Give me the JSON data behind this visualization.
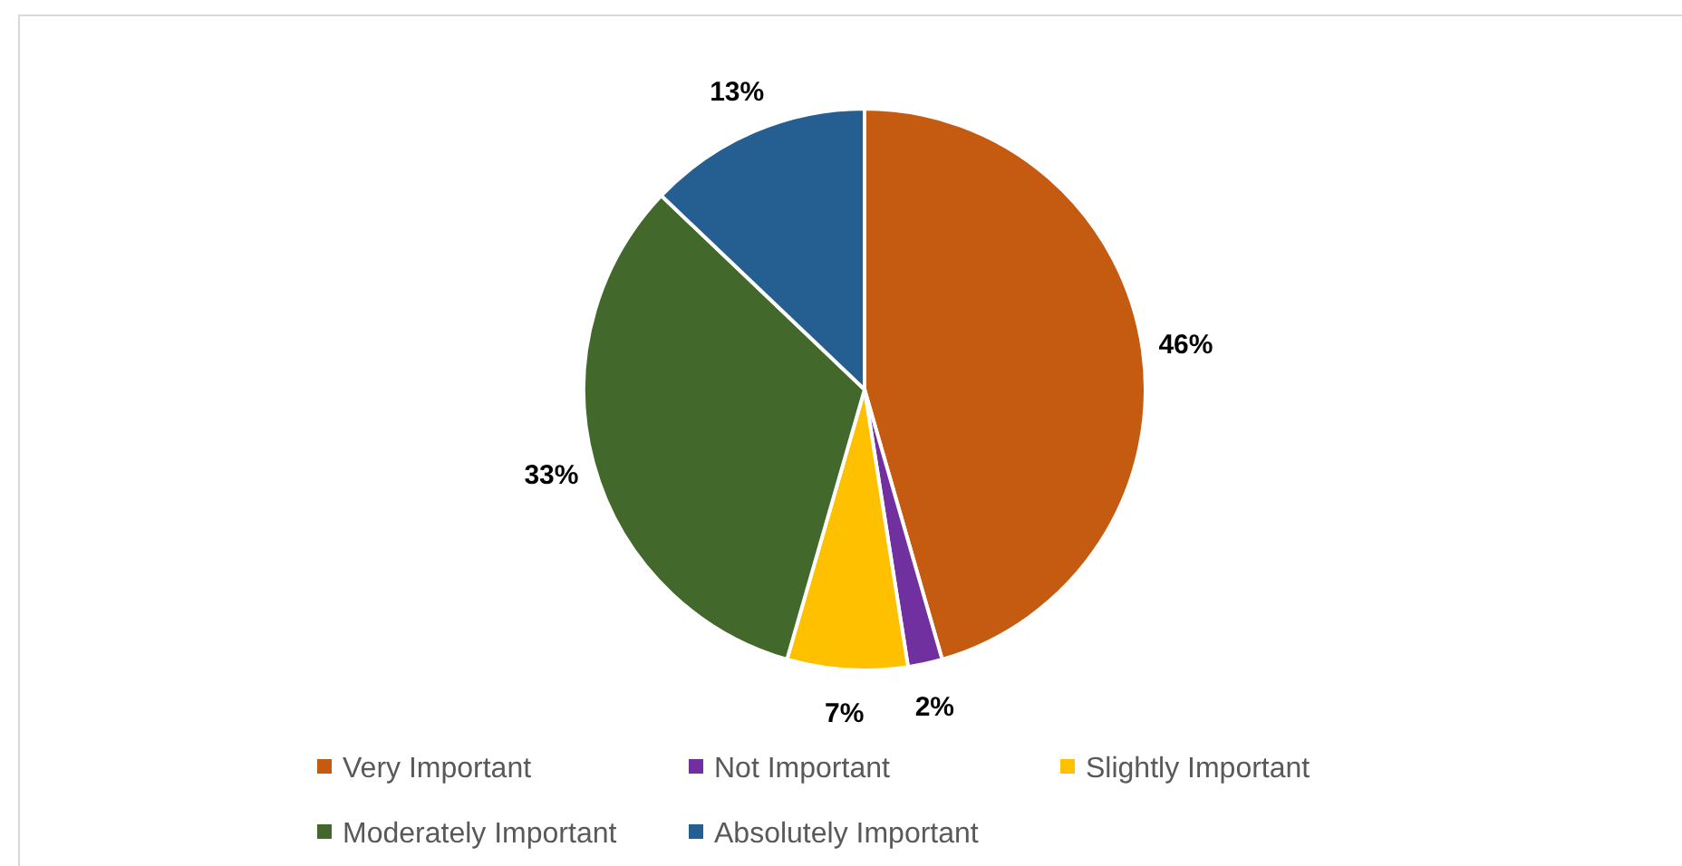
{
  "chart_data": {
    "type": "pie",
    "categories": [
      "Very Important",
      "Not Important",
      "Slightly Important",
      "Moderately Important",
      "Absolutely Important"
    ],
    "values": [
      46,
      2,
      7,
      33,
      13
    ],
    "value_labels": [
      "46%",
      "2%",
      "7%",
      "33%",
      "13%"
    ],
    "colors": [
      "#c55a11",
      "#7030a0",
      "#ffc000",
      "#43682b",
      "#255e91"
    ],
    "legend": "bottom"
  }
}
